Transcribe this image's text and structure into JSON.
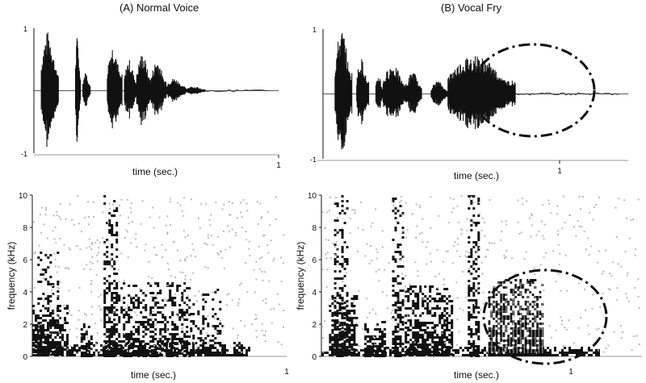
{
  "figure": {
    "panel_a_title": "(A) Normal Voice",
    "panel_b_title": "(B) Vocal Fry"
  },
  "chart_data": [
    {
      "type": "line",
      "panel": "A",
      "title": "(A) Normal Voice",
      "xlabel": "time (sec.)",
      "ylabel": "",
      "ylim": [
        -1,
        1
      ],
      "y_ticks": [
        -1,
        1
      ],
      "x_ticks": [
        1
      ],
      "xlim": [
        0,
        1.0
      ],
      "grid": false,
      "bursts": [
        {
          "start": 0.03,
          "end": 0.1,
          "amp": 0.95
        },
        {
          "start": 0.17,
          "end": 0.19,
          "amp": 0.9
        },
        {
          "start": 0.2,
          "end": 0.23,
          "amp": 0.3
        },
        {
          "start": 0.3,
          "end": 0.36,
          "amp": 0.75
        },
        {
          "start": 0.37,
          "end": 0.42,
          "amp": 0.5
        },
        {
          "start": 0.42,
          "end": 0.48,
          "amp": 0.6
        },
        {
          "start": 0.48,
          "end": 0.54,
          "amp": 0.5
        },
        {
          "start": 0.54,
          "end": 0.62,
          "amp": 0.2
        },
        {
          "start": 0.62,
          "end": 0.7,
          "amp": 0.07
        }
      ]
    },
    {
      "type": "line",
      "panel": "B",
      "title": "(B) Vocal Fry",
      "xlabel": "time (sec.)",
      "ylabel": "",
      "ylim": [
        -1,
        1
      ],
      "y_ticks": [
        -1,
        1
      ],
      "x_ticks": [
        1
      ],
      "xlim": [
        0,
        1.27
      ],
      "grid": false,
      "bursts": [
        {
          "start": 0.05,
          "end": 0.12,
          "amp": 1.0
        },
        {
          "start": 0.14,
          "end": 0.19,
          "amp": 0.55
        },
        {
          "start": 0.22,
          "end": 0.25,
          "amp": 0.3
        },
        {
          "start": 0.25,
          "end": 0.35,
          "amp": 0.45
        },
        {
          "start": 0.35,
          "end": 0.41,
          "amp": 0.35
        },
        {
          "start": 0.45,
          "end": 0.52,
          "amp": 0.2
        },
        {
          "start": 0.52,
          "end": 0.8,
          "amp": 0.6
        }
      ],
      "annotation": "dash-dot ellipse highlighting the vocal-fry segment (~0.5–0.92 s)"
    },
    {
      "type": "heatmap",
      "panel": "A",
      "xlabel": "time (sec.)",
      "ylabel": "frequency (kHz)",
      "ylim": [
        0,
        10
      ],
      "y_ticks": [
        0,
        2,
        4,
        6,
        8,
        10
      ],
      "x_ticks": [
        1
      ],
      "xlim": [
        0,
        1.0
      ],
      "grid": false
    },
    {
      "type": "heatmap",
      "panel": "B",
      "xlabel": "time (sec.)",
      "ylabel": "frequency (kHz)",
      "ylim": [
        0,
        10
      ],
      "y_ticks": [
        0,
        2,
        4,
        6,
        8,
        10
      ],
      "x_ticks": [
        1
      ],
      "xlim": [
        0,
        1.27
      ],
      "grid": false,
      "annotation": "dash-dot ellipse highlighting vocal-fry region (~0.5–0.9 s, 0–5 kHz)"
    }
  ]
}
